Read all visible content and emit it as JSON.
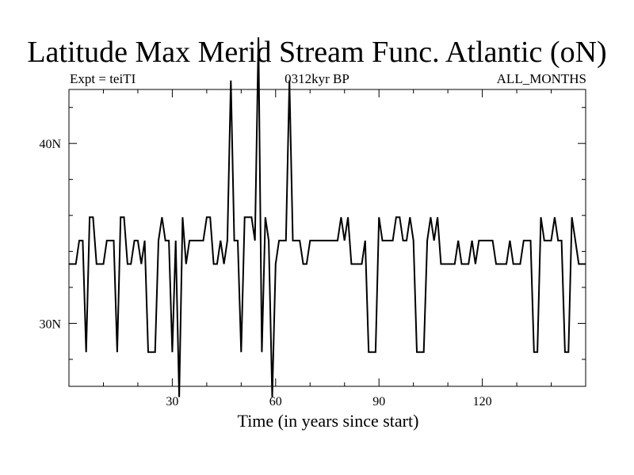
{
  "header": {
    "title": "Latitude Max Merid Stream Func. Atlantic (oN)",
    "left": "Expt = teiTI",
    "center": "0312kyr BP",
    "right": "ALL_MONTHS"
  },
  "chart_data": {
    "type": "line",
    "title": "Latitude Max Merid Stream Func. Atlantic (oN)",
    "xlabel": "Time (in years since start)",
    "ylabel": "",
    "xlim": [
      0,
      150
    ],
    "ylim": [
      26.5,
      43
    ],
    "x_ticks": [
      30,
      60,
      90,
      120
    ],
    "x_tick_labels": [
      "30",
      "60",
      "90",
      "120"
    ],
    "y_ticks": [
      30,
      40
    ],
    "y_tick_labels": [
      "30N",
      "40N"
    ],
    "series": [
      {
        "x": [
          0,
          1,
          2,
          3,
          4,
          5,
          6,
          7,
          8,
          9,
          10,
          11,
          12,
          13,
          14,
          15,
          16,
          17,
          18,
          19,
          20,
          21,
          22,
          23,
          24,
          25,
          26,
          27,
          28,
          29,
          30,
          31,
          32,
          33,
          34,
          35,
          36,
          37,
          38,
          39,
          40,
          41,
          42,
          43,
          44,
          45,
          46,
          47,
          48,
          49,
          50,
          51,
          52,
          53,
          54,
          55,
          56,
          57,
          58,
          59,
          60,
          61,
          62,
          63,
          64,
          65,
          66,
          67,
          68,
          69,
          70,
          71,
          72,
          73,
          74,
          75,
          76,
          77,
          78,
          79,
          80,
          81,
          82,
          83,
          84,
          85,
          86,
          87,
          88,
          89,
          90,
          91,
          92,
          93,
          94,
          95,
          96,
          97,
          98,
          99,
          100,
          101,
          102,
          103,
          104,
          105,
          106,
          107,
          108,
          109,
          110,
          111,
          112,
          113,
          114,
          115,
          116,
          117,
          118,
          119,
          120,
          121,
          122,
          123,
          124,
          125,
          126,
          127,
          128,
          129,
          130,
          131,
          132,
          133,
          134,
          135,
          136,
          137,
          138,
          139,
          140,
          141,
          142,
          143,
          144,
          145,
          146,
          147,
          148,
          149,
          150
        ],
        "values": [
          33.3,
          33.3,
          33.3,
          34.6,
          34.6,
          28.4,
          35.9,
          35.9,
          33.3,
          33.3,
          33.3,
          34.6,
          34.6,
          34.6,
          28.4,
          35.9,
          35.9,
          33.3,
          33.3,
          34.6,
          34.6,
          33.3,
          34.6,
          28.4,
          28.4,
          28.4,
          34.6,
          35.9,
          34.6,
          34.6,
          28.4,
          34.6,
          25.9,
          35.9,
          33.3,
          34.6,
          34.6,
          34.6,
          34.6,
          34.6,
          35.9,
          35.9,
          33.3,
          33.3,
          34.6,
          33.3,
          34.6,
          43.5,
          34.6,
          34.6,
          28.4,
          35.9,
          35.9,
          35.9,
          34.6,
          45.9,
          28.4,
          35.9,
          34.6,
          25.9,
          33.3,
          34.6,
          34.6,
          34.6,
          43.5,
          34.6,
          34.6,
          34.6,
          33.3,
          33.3,
          34.6,
          34.6,
          34.6,
          34.6,
          34.6,
          34.6,
          34.6,
          34.6,
          34.6,
          35.9,
          34.6,
          35.9,
          33.3,
          33.3,
          33.3,
          33.3,
          34.6,
          28.4,
          28.4,
          28.4,
          35.9,
          34.6,
          34.6,
          34.6,
          34.6,
          35.9,
          35.9,
          34.6,
          34.6,
          35.9,
          34.6,
          28.4,
          28.4,
          28.4,
          34.6,
          35.9,
          34.6,
          35.9,
          33.3,
          33.3,
          33.3,
          33.3,
          33.3,
          34.6,
          33.3,
          33.3,
          33.3,
          34.6,
          33.3,
          34.6,
          34.6,
          34.6,
          34.6,
          34.6,
          33.3,
          33.3,
          33.3,
          33.3,
          34.6,
          33.3,
          33.3,
          33.3,
          34.6,
          34.6,
          34.6,
          28.4,
          28.4,
          35.9,
          34.6,
          34.6,
          34.6,
          35.9,
          34.6,
          34.6,
          28.4,
          28.4,
          35.9,
          34.6,
          33.3,
          33.3,
          33.3
        ]
      }
    ]
  }
}
